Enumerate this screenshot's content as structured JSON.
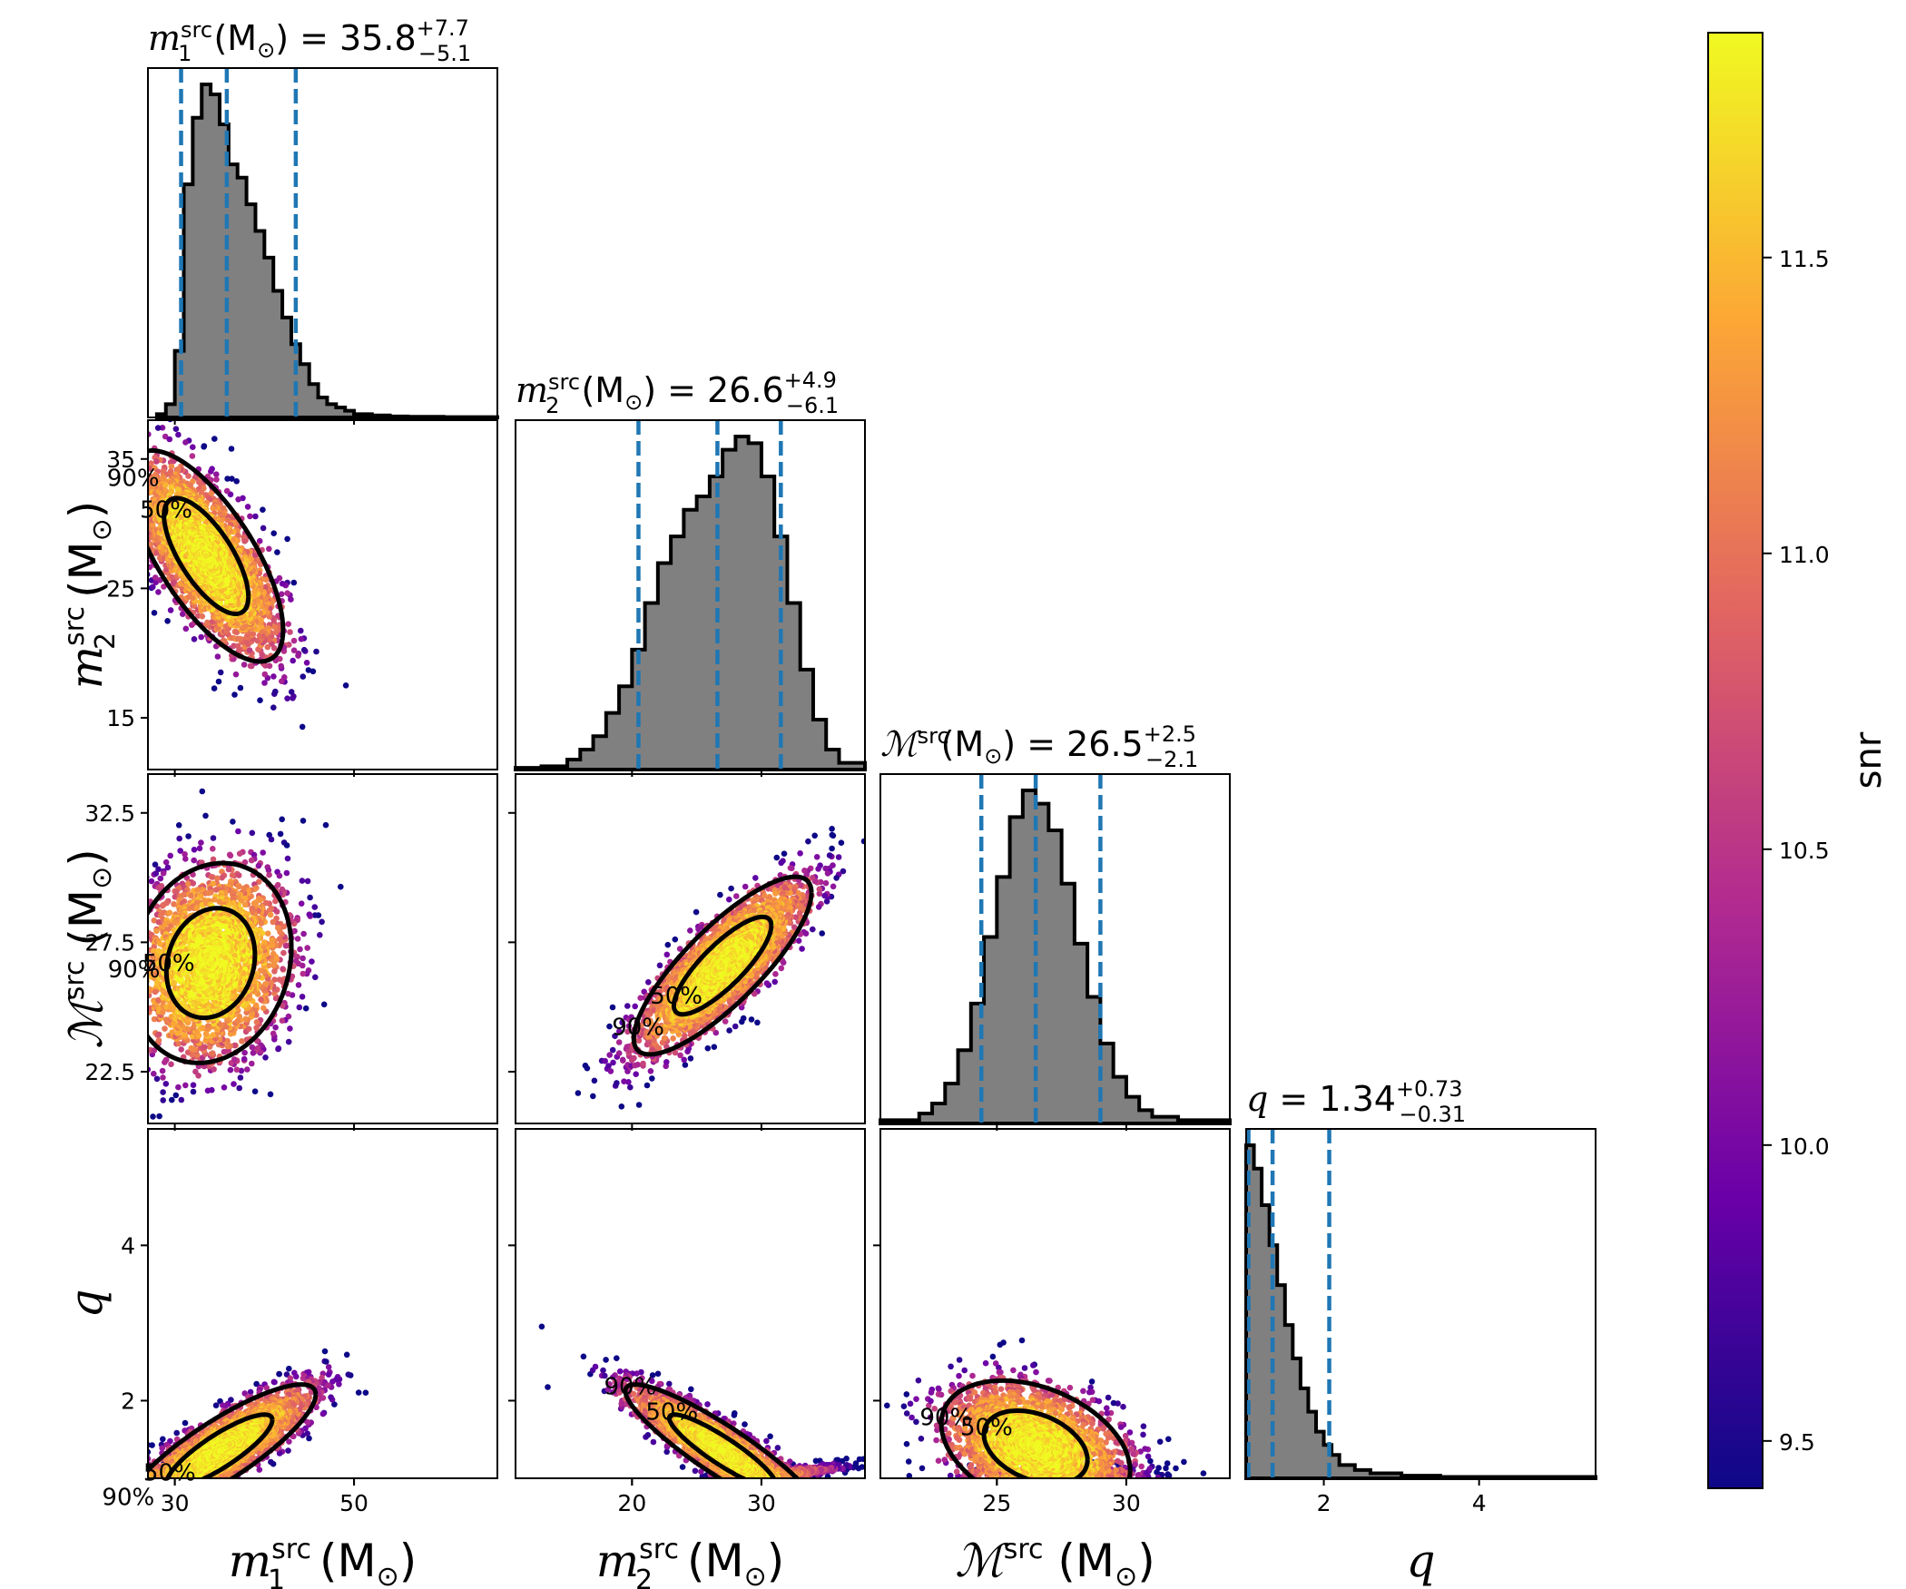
{
  "chart_data": {
    "type": "scatter",
    "colorbar": {
      "label": "snr",
      "range": [
        9.42,
        11.88
      ],
      "ticks": [
        9.5,
        10.0,
        10.5,
        11.0,
        11.5
      ],
      "tick_labels": [
        "9.5",
        "10.0",
        "10.5",
        "11.0",
        "11.5"
      ],
      "colors": [
        "#0d0887",
        "#6a00a8",
        "#b12a90",
        "#e16462",
        "#fca636",
        "#f0f921"
      ]
    },
    "parameters": [
      {
        "key": "m1",
        "label_main": "m",
        "label_sub": "1",
        "label_sup": "src",
        "unit": "(M",
        "unit_sym": "⊙",
        "unit_close": ")",
        "median": 35.8,
        "plus": "+7.7",
        "minus": "−5.1",
        "median_text": "35.8",
        "range": [
          27,
          66
        ],
        "ticks": [
          30,
          50
        ],
        "tick_labels": [
          "30",
          "50"
        ],
        "ci": [
          30.7,
          35.8,
          43.5
        ]
      },
      {
        "key": "m2",
        "label_main": "m",
        "label_sub": "2",
        "label_sup": "src",
        "unit": "(M",
        "unit_sym": "⊙",
        "unit_close": ")",
        "median": 26.6,
        "plus": "+4.9",
        "minus": "−6.1",
        "median_text": "26.6",
        "range": [
          11,
          38
        ],
        "ticks": [
          20,
          30
        ],
        "tick_labels": [
          "20",
          "30"
        ],
        "y_ticks": [
          15,
          25,
          35
        ],
        "y_tick_labels": [
          "15",
          "25",
          "35"
        ],
        "ci": [
          20.5,
          26.6,
          31.5
        ]
      },
      {
        "key": "mc",
        "label_main": "ℳ",
        "label_sub": "",
        "label_sup": "src",
        "unit": "(M",
        "unit_sym": "⊙",
        "unit_close": ")",
        "median": 26.5,
        "plus": "+2.5",
        "minus": "−2.1",
        "median_text": "26.5",
        "range": [
          20.5,
          34
        ],
        "ticks": [
          25,
          30
        ],
        "tick_labels": [
          "25",
          "30"
        ],
        "y_ticks": [
          22.5,
          27.5,
          32.5
        ],
        "y_tick_labels": [
          "22.5",
          "27.5",
          "32.5"
        ],
        "ci": [
          24.4,
          26.5,
          29.0
        ]
      },
      {
        "key": "q",
        "label_main": "q",
        "label_sub": "",
        "label_sup": "",
        "unit": "",
        "unit_sym": "",
        "unit_close": "",
        "median": 1.34,
        "plus": "+0.73",
        "minus": "−0.31",
        "median_text": "1.34",
        "range": [
          1.0,
          5.5
        ],
        "ticks": [
          2,
          4
        ],
        "tick_labels": [
          "2",
          "4"
        ],
        "y_ticks": [
          2,
          4
        ],
        "y_tick_labels": [
          "2",
          "4"
        ],
        "ci": [
          1.03,
          1.34,
          2.07
        ]
      }
    ],
    "contour_levels": [
      "50%",
      "90%"
    ],
    "histograms": {
      "m1": {
        "bins": [
          28,
          29,
          30,
          31,
          32,
          33,
          34,
          35,
          36,
          37,
          38,
          39,
          40,
          41,
          42,
          43,
          44,
          45,
          46,
          47,
          48,
          49,
          50,
          52,
          54,
          56,
          60,
          66
        ],
        "counts": [
          1,
          4,
          20,
          70,
          90,
          100,
          97,
          88,
          76,
          72,
          64,
          56,
          48,
          38,
          30,
          22,
          16,
          10,
          6,
          4,
          3,
          2,
          1,
          0.6,
          0.3,
          0.2,
          0.1
        ]
      },
      "m2": {
        "bins": [
          11,
          13,
          15,
          16,
          17,
          18,
          19,
          20,
          21,
          22,
          23,
          24,
          25,
          26,
          27,
          28,
          29,
          30,
          31,
          32,
          33,
          34,
          35,
          36,
          38
        ],
        "counts": [
          0.5,
          1,
          3,
          6,
          10,
          17,
          25,
          36,
          50,
          62,
          70,
          78,
          82,
          88,
          96,
          100,
          98,
          88,
          70,
          50,
          30,
          15,
          6,
          2
        ]
      },
      "mc": {
        "bins": [
          20.5,
          22,
          22.5,
          23,
          23.5,
          24,
          24.5,
          25,
          25.5,
          26,
          26.5,
          27,
          27.5,
          28,
          28.5,
          29,
          29.5,
          30,
          30.5,
          31,
          32,
          34
        ],
        "counts": [
          1,
          3,
          6,
          12,
          22,
          36,
          56,
          74,
          92,
          100,
          96,
          88,
          72,
          54,
          38,
          24,
          14,
          8,
          4,
          2,
          1
        ]
      },
      "q": {
        "bins": [
          1.0,
          1.1,
          1.2,
          1.3,
          1.4,
          1.5,
          1.6,
          1.7,
          1.8,
          1.9,
          2.0,
          2.1,
          2.2,
          2.4,
          2.6,
          3.0,
          3.5,
          5.5
        ],
        "counts": [
          100,
          93,
          82,
          70,
          58,
          46,
          36,
          27,
          20,
          14,
          10,
          7,
          4,
          2.5,
          1.5,
          0.8,
          0.4
        ]
      }
    },
    "pairs": [
      {
        "x": "m1",
        "y": "m2",
        "center": [
          33.5,
          27.5
        ],
        "sd": [
          4.0,
          3.8
        ],
        "rho": -0.7
      },
      {
        "x": "m1",
        "y": "mc",
        "center": [
          34.0,
          26.7
        ],
        "sd": [
          4.2,
          1.8
        ],
        "rho": 0.15
      },
      {
        "x": "m2",
        "y": "mc",
        "center": [
          27.0,
          26.6
        ],
        "sd": [
          3.2,
          1.6
        ],
        "rho": 0.82
      },
      {
        "x": "m1",
        "y": "q",
        "center": [
          35.0,
          1.35
        ],
        "sd": [
          5.0,
          0.4
        ],
        "rho": 0.85
      },
      {
        "x": "m2",
        "y": "q",
        "center": [
          27.0,
          1.35
        ],
        "sd": [
          3.5,
          0.4
        ],
        "rho": -0.9
      },
      {
        "x": "mc",
        "y": "q",
        "center": [
          26.5,
          1.4
        ],
        "sd": [
          1.7,
          0.4
        ],
        "rho": -0.35
      }
    ]
  }
}
